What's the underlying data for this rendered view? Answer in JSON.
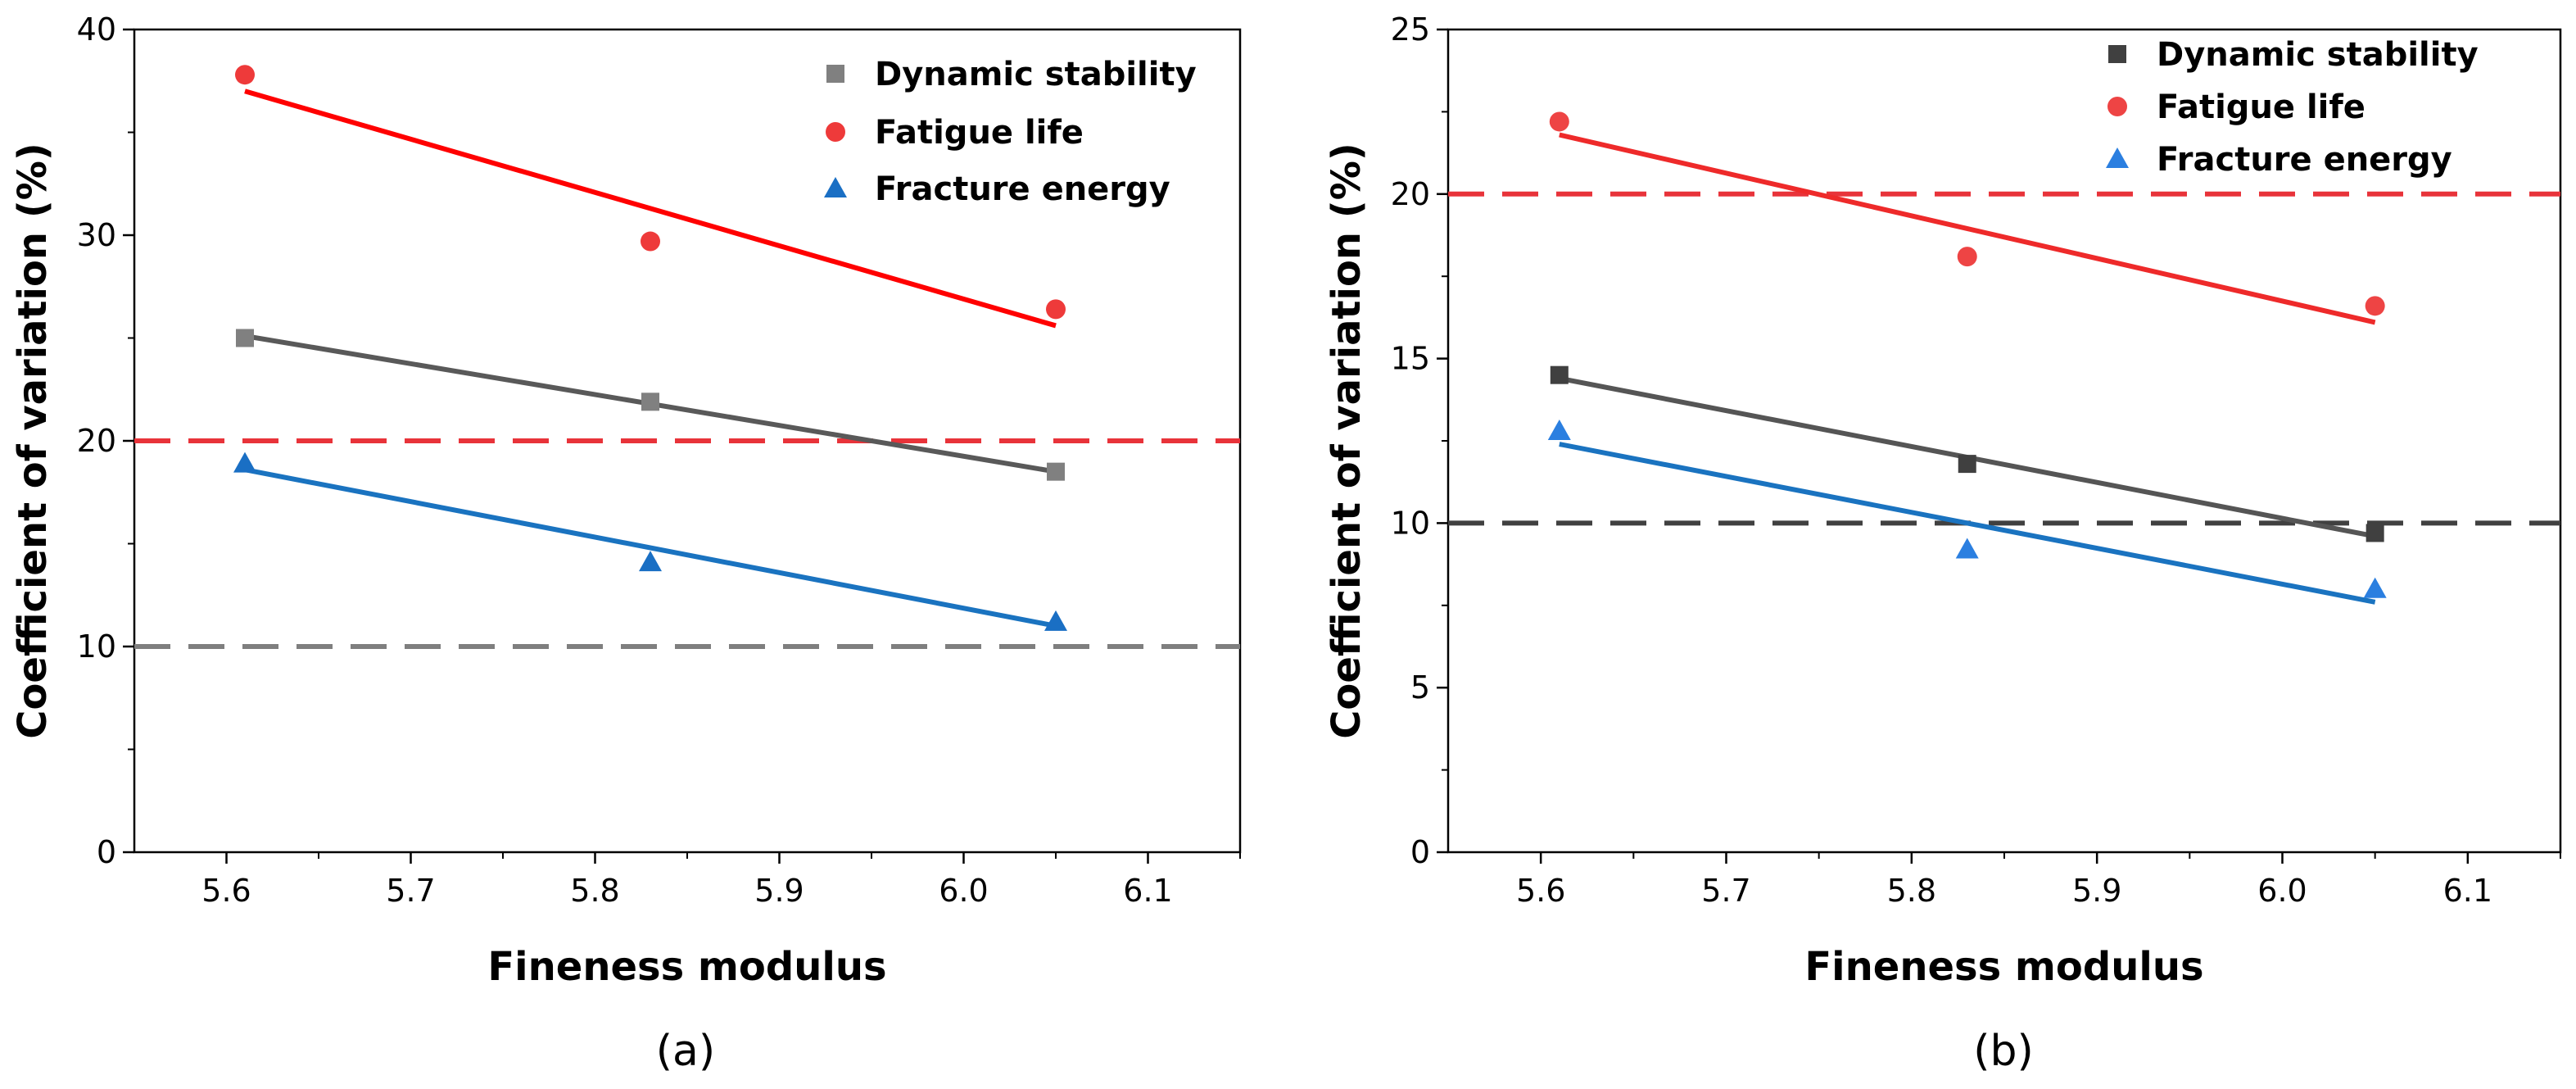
{
  "chart_data": [
    {
      "type": "scatter",
      "caption": "(a)",
      "xlabel": "Fineness modulus",
      "ylabel": "Coefficient of variation (%)",
      "xlim": [
        5.55,
        6.15
      ],
      "ylim": [
        0,
        40
      ],
      "xticks": [
        5.6,
        5.7,
        5.8,
        5.9,
        6.0,
        6.1
      ],
      "xtick_labels": [
        "5.6",
        "5.7",
        "5.8",
        "5.9",
        "6.0",
        "6.1"
      ],
      "yticks": [
        0,
        10,
        20,
        30,
        40
      ],
      "ytick_labels": [
        "0",
        "10",
        "20",
        "30",
        "40"
      ],
      "legend_position": "top-right",
      "series": [
        {
          "name": "Dynamic stability",
          "marker": "square",
          "color": "#808080",
          "line_color": "#595959",
          "x": [
            5.61,
            5.83,
            6.05
          ],
          "values": [
            25.0,
            21.9,
            18.5
          ],
          "fit": [
            25.1,
            18.5
          ]
        },
        {
          "name": "Fatigue life",
          "marker": "circle",
          "color": "#ee3a3a",
          "line_color": "#ff0000",
          "x": [
            5.61,
            5.83,
            6.05
          ],
          "values": [
            37.8,
            29.7,
            26.4
          ],
          "fit": [
            37.0,
            25.6
          ]
        },
        {
          "name": "Fracture energy",
          "marker": "triangle",
          "color": "#1a6fc4",
          "line_color": "#1a73c0",
          "x": [
            5.61,
            5.83,
            6.05
          ],
          "values": [
            18.9,
            14.1,
            11.2
          ],
          "fit": [
            18.6,
            11.0
          ]
        }
      ],
      "reference_lines": [
        {
          "y": 20,
          "color": "#e8333a"
        },
        {
          "y": 10,
          "color": "#7f7f7f"
        }
      ]
    },
    {
      "type": "scatter",
      "caption": "(b)",
      "xlabel": "Fineness modulus",
      "ylabel": "Coefficient of variation (%)",
      "xlim": [
        5.55,
        6.15
      ],
      "ylim": [
        0,
        25
      ],
      "xticks": [
        5.6,
        5.7,
        5.8,
        5.9,
        6.0,
        6.1
      ],
      "xtick_labels": [
        "5.6",
        "5.7",
        "5.8",
        "5.9",
        "6.0",
        "6.1"
      ],
      "yticks": [
        0,
        5,
        10,
        15,
        20,
        25
      ],
      "ytick_labels": [
        "0",
        "5",
        "10",
        "15",
        "20",
        "25"
      ],
      "legend_position": "top-right",
      "series": [
        {
          "name": "Dynamic stability",
          "marker": "square",
          "color": "#404040",
          "line_color": "#555555",
          "x": [
            5.61,
            5.83,
            6.05
          ],
          "values": [
            14.5,
            11.8,
            9.7
          ],
          "fit": [
            14.4,
            9.6
          ]
        },
        {
          "name": "Fatigue life",
          "marker": "circle",
          "color": "#ee4444",
          "line_color": "#ee2a2a",
          "x": [
            5.61,
            5.83,
            6.05
          ],
          "values": [
            22.2,
            18.1,
            16.6
          ],
          "fit": [
            21.8,
            16.1
          ]
        },
        {
          "name": "Fracture energy",
          "marker": "triangle",
          "color": "#2b7fe0",
          "line_color": "#1a73c0",
          "x": [
            5.61,
            5.83,
            6.05
          ],
          "values": [
            12.8,
            9.2,
            8.0
          ],
          "fit": [
            12.4,
            7.6
          ]
        }
      ],
      "reference_lines": [
        {
          "y": 20,
          "color": "#e8333a"
        },
        {
          "y": 10,
          "color": "#404040"
        }
      ]
    }
  ]
}
